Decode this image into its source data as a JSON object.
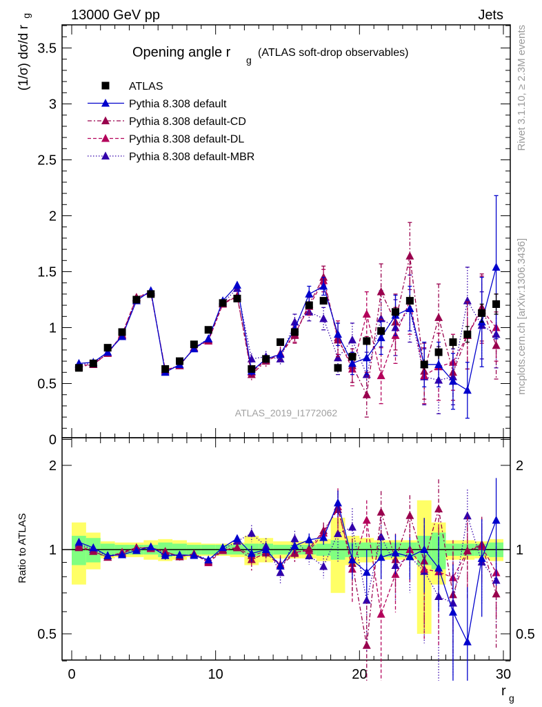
{
  "header": {
    "left": "13000 GeV pp",
    "right": "Jets"
  },
  "title": {
    "main": "Opening angle r",
    "sub": "g",
    "suffix": "(ATLAS soft-drop observables)"
  },
  "side_text": {
    "rivet": "Rivet 3.1.10, ≥ 2.3M events",
    "mcplots": "mcplots.cern.ch [arXiv:1306.3436]"
  },
  "watermark": "ATLAS_2019_I1772062",
  "labels": {
    "ylabel_main": "(1/σ) dσ/d r",
    "ylabel_main_sub": "g",
    "ylabel_ratio": "Ratio to ATLAS",
    "xlabel": "r",
    "xlabel_sub": "g"
  },
  "colors": {
    "data": "#000000",
    "default": "#0000cc",
    "cd": "#99004d",
    "dl": "#b3005a",
    "mbr": "#3300aa",
    "band_inner": "#80ff80",
    "band_outer": "#ffff66"
  },
  "legend": [
    {
      "label": "ATLAS",
      "style": "data"
    },
    {
      "label": "Pythia 8.308 default",
      "style": "default"
    },
    {
      "label": "Pythia 8.308 default-CD",
      "style": "cd"
    },
    {
      "label": "Pythia 8.308 default-DL",
      "style": "dl"
    },
    {
      "label": "Pythia 8.308 default-MBR",
      "style": "mbr"
    }
  ],
  "chart_data": {
    "type": "scatter",
    "x": [
      0.5,
      1.5,
      2.5,
      3.5,
      4.5,
      5.5,
      6.5,
      7.5,
      8.5,
      9.5,
      10.5,
      11.5,
      12.5,
      13.5,
      14.5,
      15.5,
      16.5,
      17.5,
      18.5,
      19.5,
      20.5,
      21.5,
      22.5,
      23.5,
      24.5,
      25.5,
      26.5,
      27.5,
      28.5,
      29.5
    ],
    "xlim": [
      -0.5,
      30.5
    ],
    "ylim_main": [
      0,
      3.7
    ],
    "ylim_ratio": [
      0.34,
      2.3
    ],
    "xticks": [
      0,
      10,
      20,
      30
    ],
    "yticks_main": [
      0,
      0.5,
      1,
      1.5,
      2,
      2.5,
      3,
      3.5
    ],
    "yticks_ratio": [
      0.5,
      1,
      2
    ],
    "series": [
      {
        "name": "ATLAS",
        "key": "data",
        "y": [
          0.64,
          0.68,
          0.82,
          0.96,
          1.25,
          1.3,
          0.63,
          0.7,
          0.85,
          0.98,
          1.22,
          1.26,
          0.63,
          0.72,
          0.87,
          0.96,
          1.2,
          1.24,
          0.64,
          0.74,
          0.88,
          0.97,
          1.14,
          1.24,
          0.67,
          0.78,
          0.87,
          0.94,
          1.13,
          1.21
        ],
        "err": [
          0.02,
          0.02,
          0.02,
          0.02,
          0.02,
          0.02,
          0.02,
          0.02,
          0.02,
          0.02,
          0.02,
          0.02,
          0.02,
          0.02,
          0.02,
          0.03,
          0.03,
          0.03,
          0.03,
          0.03,
          0.04,
          0.04,
          0.05,
          0.05,
          0.05,
          0.06,
          0.06,
          0.07,
          0.08,
          0.09
        ]
      },
      {
        "name": "Pythia 8.308 default",
        "key": "default",
        "y": [
          0.68,
          0.69,
          0.78,
          0.92,
          1.24,
          1.33,
          0.6,
          0.67,
          0.81,
          0.9,
          1.24,
          1.38,
          0.61,
          0.72,
          0.76,
          0.99,
          1.3,
          1.37,
          0.94,
          0.68,
          0.73,
          0.91,
          1.11,
          1.17,
          0.67,
          0.67,
          0.52,
          0.44,
          1.05,
          1.54
        ],
        "err": [
          0.01,
          0.01,
          0.01,
          0.02,
          0.02,
          0.02,
          0.02,
          0.02,
          0.02,
          0.02,
          0.03,
          0.03,
          0.04,
          0.04,
          0.05,
          0.06,
          0.07,
          0.08,
          0.1,
          0.1,
          0.15,
          0.15,
          0.18,
          0.2,
          0.2,
          0.2,
          0.25,
          0.25,
          0.4,
          0.64
        ]
      },
      {
        "name": "Pythia 8.308 default-CD",
        "key": "cd",
        "y": [
          0.65,
          0.67,
          0.77,
          0.93,
          1.27,
          1.32,
          0.62,
          0.66,
          0.82,
          0.89,
          1.22,
          1.28,
          0.58,
          0.7,
          0.76,
          0.93,
          1.21,
          1.45,
          0.89,
          0.66,
          0.4,
          1.32,
          1.05,
          1.64,
          0.61,
          1.09,
          0.6,
          0.93,
          1.18,
          0.84
        ],
        "err": [
          0.01,
          0.01,
          0.01,
          0.02,
          0.02,
          0.02,
          0.02,
          0.02,
          0.02,
          0.02,
          0.03,
          0.03,
          0.05,
          0.05,
          0.06,
          0.07,
          0.08,
          0.1,
          0.15,
          0.15,
          0.2,
          0.25,
          0.25,
          0.3,
          0.25,
          0.3,
          0.25,
          0.3,
          0.3,
          0.3
        ]
      },
      {
        "name": "Pythia 8.308 default-DL",
        "key": "dl",
        "y": [
          0.66,
          0.67,
          0.77,
          0.94,
          1.27,
          1.31,
          0.62,
          0.66,
          0.82,
          0.88,
          1.21,
          1.28,
          0.6,
          0.71,
          0.77,
          0.94,
          1.19,
          1.42,
          0.91,
          0.63,
          1.12,
          0.57,
          0.93,
          1.24,
          0.57,
          0.65,
          0.69,
          0.93,
          1.16,
          1.0
        ],
        "err": [
          0.01,
          0.01,
          0.01,
          0.02,
          0.02,
          0.02,
          0.02,
          0.02,
          0.02,
          0.02,
          0.03,
          0.03,
          0.05,
          0.05,
          0.06,
          0.07,
          0.08,
          0.1,
          0.15,
          0.15,
          0.2,
          0.25,
          0.25,
          0.3,
          0.25,
          0.3,
          0.25,
          0.3,
          0.3,
          0.3
        ]
      },
      {
        "name": "Pythia 8.308 default-MBR",
        "key": "mbr",
        "y": [
          0.67,
          0.68,
          0.78,
          0.93,
          1.26,
          1.32,
          0.61,
          0.66,
          0.82,
          0.9,
          1.22,
          1.35,
          0.72,
          0.74,
          0.72,
          1.05,
          1.14,
          1.08,
          0.73,
          0.89,
          0.58,
          1.08,
          1.0,
          1.17,
          0.56,
          0.53,
          0.56,
          1.24,
          1.02,
          0.94
        ],
        "err": [
          0.01,
          0.01,
          0.01,
          0.02,
          0.02,
          0.02,
          0.02,
          0.02,
          0.02,
          0.02,
          0.03,
          0.03,
          0.05,
          0.05,
          0.06,
          0.07,
          0.08,
          0.1,
          0.15,
          0.15,
          0.2,
          0.25,
          0.25,
          0.3,
          0.25,
          0.3,
          0.25,
          0.3,
          0.3,
          0.3
        ]
      }
    ],
    "ratio_band": {
      "inner": [
        0.12,
        0.1,
        0.05,
        0.04,
        0.04,
        0.04,
        0.06,
        0.05,
        0.04,
        0.04,
        0.04,
        0.04,
        0.05,
        0.05,
        0.04,
        0.04,
        0.04,
        0.05,
        0.08,
        0.06,
        0.06,
        0.06,
        0.06,
        0.06,
        0.12,
        0.15,
        0.05,
        0.05,
        0.05,
        0.06
      ],
      "outer": [
        0.25,
        0.15,
        0.07,
        0.06,
        0.06,
        0.08,
        0.09,
        0.08,
        0.06,
        0.05,
        0.05,
        0.06,
        0.12,
        0.1,
        0.07,
        0.07,
        0.07,
        0.09,
        0.3,
        0.12,
        0.1,
        0.08,
        0.08,
        0.08,
        0.5,
        0.25,
        0.08,
        0.08,
        0.07,
        0.09
      ]
    }
  }
}
